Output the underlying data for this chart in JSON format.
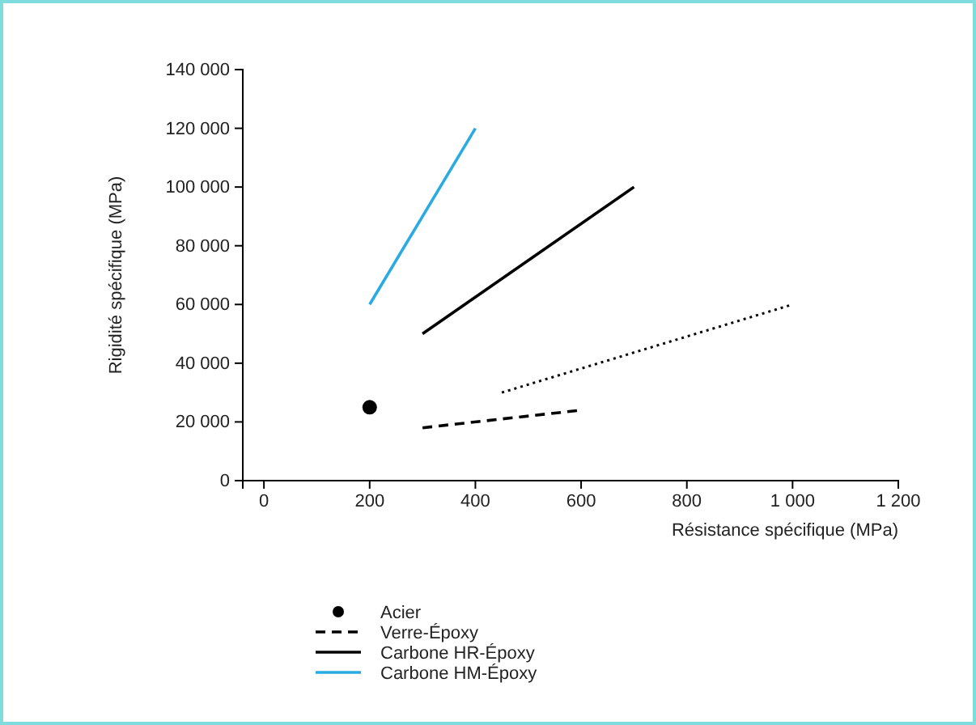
{
  "chart_data": {
    "type": "line",
    "xlabel": "Résistance spécifique (MPa)",
    "ylabel": "Rigidité spécifique (MPa)",
    "xlim": [
      -40,
      1200
    ],
    "xticks": [
      0,
      200,
      400,
      600,
      800,
      {
        "value": 1000,
        "label": "1 000"
      },
      {
        "value": 1200,
        "label": "1 200"
      }
    ],
    "ylim": [
      0,
      140000
    ],
    "yticks": [
      0,
      {
        "value": 20000,
        "label": "20 000"
      },
      {
        "value": 40000,
        "label": "40 000"
      },
      {
        "value": 60000,
        "label": "60 000"
      },
      {
        "value": 80000,
        "label": "80 000"
      },
      {
        "value": 100000,
        "label": "100 000"
      },
      {
        "value": 120000,
        "label": "120 000"
      },
      {
        "value": 140000,
        "label": "140 000"
      }
    ],
    "grid": false,
    "legend": "bottom",
    "series": [
      {
        "name": "Acier",
        "type": "scatter",
        "marker": "circle",
        "color": "#000000",
        "x": [
          200
        ],
        "values": [
          25000
        ]
      },
      {
        "name": "Verre-Époxy",
        "type": "line",
        "line_style": "dashed",
        "color": "#000000",
        "x": [
          300,
          600
        ],
        "values": [
          18000,
          24000
        ]
      },
      {
        "type": "line",
        "line_style": "dotted",
        "color": "#000000",
        "x": [
          450,
          1000
        ],
        "values": [
          30000,
          60000
        ]
      },
      {
        "name": "Carbone HR-Époxy",
        "type": "line",
        "line_style": "solid",
        "color": "#000000",
        "x": [
          300,
          700
        ],
        "values": [
          50000,
          100000
        ]
      },
      {
        "name": "Carbone HM-Époxy",
        "type": "line",
        "line_style": "solid",
        "color": "#29abe2",
        "x": [
          200,
          400
        ],
        "values": [
          60000,
          120000
        ]
      }
    ]
  }
}
